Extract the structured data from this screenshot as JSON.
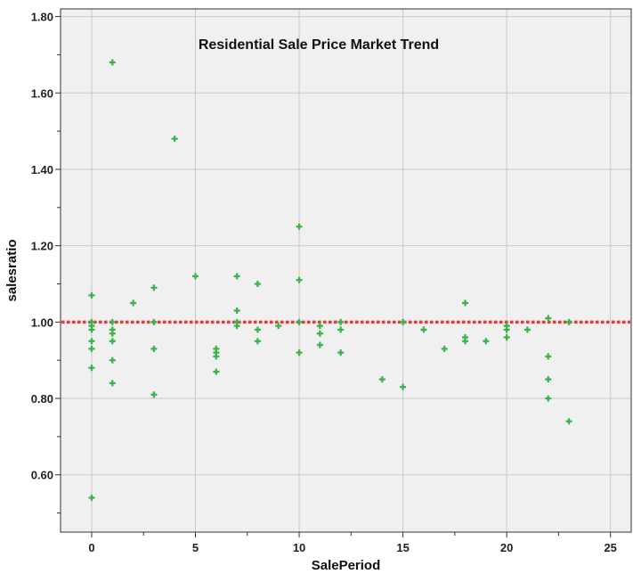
{
  "chart_data": {
    "type": "scatter",
    "title": "Residential Sale Price Market Trend",
    "xlabel": "SalePeriod",
    "ylabel": "salesratio",
    "xlim": [
      -1.5,
      26
    ],
    "ylim": [
      0.45,
      1.82
    ],
    "xticks": [
      0,
      5,
      10,
      15,
      20,
      25
    ],
    "xtick_labels": [
      "0",
      "5",
      "10",
      "15",
      "20",
      "25"
    ],
    "yticks": [
      0.6,
      0.8,
      1.0,
      1.2,
      1.4,
      1.6,
      1.8
    ],
    "ytick_labels": [
      "0.60",
      "0.80",
      "1.00",
      "1.20",
      "1.40",
      "1.60",
      "1.80"
    ],
    "grid": true,
    "reference_line": {
      "y": 1.0,
      "style": "dotted",
      "color": "#e8393c"
    },
    "colors": {
      "points": "#3cb44b",
      "background": "#f0f0f0",
      "grid": "#c8c8c8",
      "frame": "#333333"
    },
    "points": [
      {
        "x": 0,
        "y": 1.07
      },
      {
        "x": 0,
        "y": 1.0
      },
      {
        "x": 0,
        "y": 0.99
      },
      {
        "x": 0,
        "y": 0.98
      },
      {
        "x": 0,
        "y": 0.95
      },
      {
        "x": 0,
        "y": 0.93
      },
      {
        "x": 0,
        "y": 0.88
      },
      {
        "x": 0,
        "y": 0.54
      },
      {
        "x": 1,
        "y": 1.68
      },
      {
        "x": 1,
        "y": 1.0
      },
      {
        "x": 1,
        "y": 0.98
      },
      {
        "x": 1,
        "y": 0.97
      },
      {
        "x": 1,
        "y": 0.95
      },
      {
        "x": 1,
        "y": 0.9
      },
      {
        "x": 1,
        "y": 0.84
      },
      {
        "x": 2,
        "y": 1.05
      },
      {
        "x": 3,
        "y": 1.09
      },
      {
        "x": 3,
        "y": 1.0
      },
      {
        "x": 3,
        "y": 0.93
      },
      {
        "x": 3,
        "y": 0.81
      },
      {
        "x": 4,
        "y": 1.48
      },
      {
        "x": 5,
        "y": 1.12
      },
      {
        "x": 6,
        "y": 0.93
      },
      {
        "x": 6,
        "y": 0.92
      },
      {
        "x": 6,
        "y": 0.91
      },
      {
        "x": 6,
        "y": 0.87
      },
      {
        "x": 7,
        "y": 1.12
      },
      {
        "x": 7,
        "y": 1.03
      },
      {
        "x": 7,
        "y": 1.0
      },
      {
        "x": 7,
        "y": 0.99
      },
      {
        "x": 8,
        "y": 1.1
      },
      {
        "x": 8,
        "y": 0.98
      },
      {
        "x": 8,
        "y": 0.95
      },
      {
        "x": 9,
        "y": 0.99
      },
      {
        "x": 10,
        "y": 1.25
      },
      {
        "x": 10,
        "y": 1.11
      },
      {
        "x": 10,
        "y": 1.0
      },
      {
        "x": 10,
        "y": 0.92
      },
      {
        "x": 11,
        "y": 0.99
      },
      {
        "x": 11,
        "y": 0.97
      },
      {
        "x": 11,
        "y": 0.94
      },
      {
        "x": 12,
        "y": 1.0
      },
      {
        "x": 12,
        "y": 0.98
      },
      {
        "x": 12,
        "y": 0.92
      },
      {
        "x": 14,
        "y": 0.85
      },
      {
        "x": 15,
        "y": 1.0
      },
      {
        "x": 15,
        "y": 0.83
      },
      {
        "x": 16,
        "y": 0.98
      },
      {
        "x": 17,
        "y": 0.93
      },
      {
        "x": 18,
        "y": 1.05
      },
      {
        "x": 18,
        "y": 0.96
      },
      {
        "x": 18,
        "y": 0.95
      },
      {
        "x": 19,
        "y": 0.95
      },
      {
        "x": 20,
        "y": 0.99
      },
      {
        "x": 20,
        "y": 0.98
      },
      {
        "x": 20,
        "y": 0.96
      },
      {
        "x": 21,
        "y": 0.98
      },
      {
        "x": 22,
        "y": 1.01
      },
      {
        "x": 22,
        "y": 0.91
      },
      {
        "x": 22,
        "y": 0.85
      },
      {
        "x": 22,
        "y": 0.8
      },
      {
        "x": 23,
        "y": 1.0
      },
      {
        "x": 23,
        "y": 0.74
      }
    ]
  }
}
